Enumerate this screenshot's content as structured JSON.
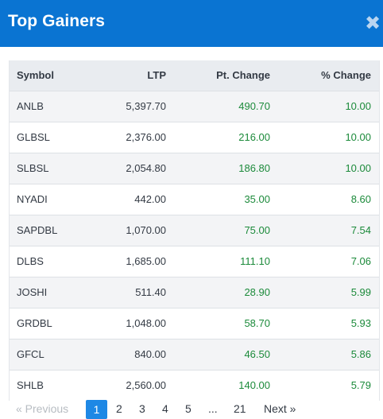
{
  "header": {
    "title": "Top Gainers",
    "close_icon": "close-icon"
  },
  "table": {
    "columns": [
      "Symbol",
      "LTP",
      "Pt. Change",
      "% Change"
    ],
    "rows": [
      [
        "ANLB",
        "5,397.70",
        "490.70",
        "10.00"
      ],
      [
        "GLBSL",
        "2,376.00",
        "216.00",
        "10.00"
      ],
      [
        "SLBSL",
        "2,054.80",
        "186.80",
        "10.00"
      ],
      [
        "NYADI",
        "442.00",
        "35.00",
        "8.60"
      ],
      [
        "SAPDBL",
        "1,070.00",
        "75.00",
        "7.54"
      ],
      [
        "DLBS",
        "1,685.00",
        "111.10",
        "7.06"
      ],
      [
        "JOSHI",
        "511.40",
        "28.90",
        "5.99"
      ],
      [
        "GRDBL",
        "1,048.00",
        "58.70",
        "5.93"
      ],
      [
        "GFCL",
        "840.00",
        "46.50",
        "5.86"
      ],
      [
        "SHLB",
        "2,560.00",
        "140.00",
        "5.79"
      ]
    ]
  },
  "pagination": {
    "previous": "« Previous",
    "pages": [
      "1",
      "2",
      "3",
      "4",
      "5",
      "...",
      "21"
    ],
    "next": "Next »",
    "current": "1"
  },
  "colors": {
    "header": "#0a74d2",
    "positive": "#1b8a3a",
    "active_page": "#1e88e5"
  }
}
